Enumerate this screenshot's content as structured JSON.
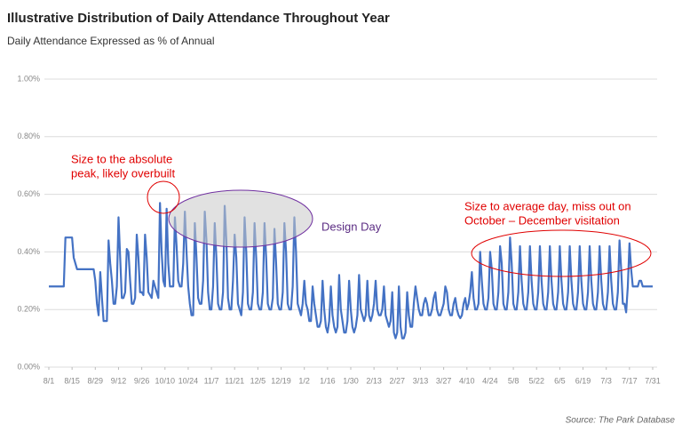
{
  "chart_data": {
    "type": "line",
    "title": "Illustrative Distribution of Daily Attendance Throughout Year",
    "subtitle": "Daily Attendance Expressed as % of Annual",
    "source": "Source: The Park Database",
    "color": "#4472c4",
    "grid": true,
    "ylim": [
      0,
      1.0
    ],
    "yticks": [
      {
        "value": 0,
        "label": "0.00%"
      },
      {
        "value": 0.2,
        "label": "0.20%"
      },
      {
        "value": 0.4,
        "label": "0.40%"
      },
      {
        "value": 0.6,
        "label": "0.60%"
      },
      {
        "value": 0.8,
        "label": "0.80%"
      },
      {
        "value": 1.0,
        "label": "1.00%"
      }
    ],
    "xlim": [
      0,
      364
    ],
    "xticks": [
      {
        "value": 0,
        "label": "8/1"
      },
      {
        "value": 14,
        "label": "8/15"
      },
      {
        "value": 28,
        "label": "8/29"
      },
      {
        "value": 42,
        "label": "9/12"
      },
      {
        "value": 56,
        "label": "9/26"
      },
      {
        "value": 70,
        "label": "10/10"
      },
      {
        "value": 84,
        "label": "10/24"
      },
      {
        "value": 98,
        "label": "11/7"
      },
      {
        "value": 112,
        "label": "11/21"
      },
      {
        "value": 126,
        "label": "12/5"
      },
      {
        "value": 140,
        "label": "12/19"
      },
      {
        "value": 154,
        "label": "1/2"
      },
      {
        "value": 168,
        "label": "1/16"
      },
      {
        "value": 182,
        "label": "1/30"
      },
      {
        "value": 196,
        "label": "2/13"
      },
      {
        "value": 210,
        "label": "2/27"
      },
      {
        "value": 224,
        "label": "3/13"
      },
      {
        "value": 238,
        "label": "3/27"
      },
      {
        "value": 252,
        "label": "4/10"
      },
      {
        "value": 266,
        "label": "4/24"
      },
      {
        "value": 280,
        "label": "5/8"
      },
      {
        "value": 294,
        "label": "5/22"
      },
      {
        "value": 308,
        "label": "6/5"
      },
      {
        "value": 322,
        "label": "6/19"
      },
      {
        "value": 336,
        "label": "7/3"
      },
      {
        "value": 350,
        "label": "7/17"
      },
      {
        "value": 364,
        "label": "7/31"
      }
    ],
    "annotations": [
      {
        "lines": [
          "Size to the absolute",
          "peak, likely overbuilt"
        ]
      },
      {
        "lines": [
          "Design Day"
        ]
      },
      {
        "lines": [
          "Size to average day, miss out on",
          "October – December visitation"
        ]
      }
    ],
    "values": [
      0.28,
      0.28,
      0.28,
      0.28,
      0.28,
      0.28,
      0.28,
      0.28,
      0.28,
      0.28,
      0.45,
      0.45,
      0.45,
      0.45,
      0.45,
      0.38,
      0.36,
      0.34,
      0.34,
      0.34,
      0.34,
      0.34,
      0.34,
      0.34,
      0.34,
      0.34,
      0.34,
      0.34,
      0.3,
      0.22,
      0.18,
      0.33,
      0.24,
      0.16,
      0.16,
      0.16,
      0.44,
      0.36,
      0.3,
      0.22,
      0.22,
      0.28,
      0.52,
      0.38,
      0.24,
      0.24,
      0.26,
      0.41,
      0.4,
      0.3,
      0.22,
      0.22,
      0.24,
      0.46,
      0.38,
      0.26,
      0.26,
      0.25,
      0.46,
      0.38,
      0.26,
      0.25,
      0.24,
      0.3,
      0.28,
      0.26,
      0.24,
      0.57,
      0.4,
      0.3,
      0.28,
      0.55,
      0.36,
      0.28,
      0.28,
      0.28,
      0.52,
      0.42,
      0.3,
      0.28,
      0.28,
      0.36,
      0.54,
      0.4,
      0.28,
      0.22,
      0.18,
      0.18,
      0.5,
      0.38,
      0.24,
      0.22,
      0.22,
      0.3,
      0.54,
      0.44,
      0.26,
      0.2,
      0.2,
      0.28,
      0.5,
      0.38,
      0.22,
      0.2,
      0.2,
      0.26,
      0.56,
      0.44,
      0.24,
      0.2,
      0.2,
      0.3,
      0.46,
      0.38,
      0.22,
      0.2,
      0.18,
      0.26,
      0.52,
      0.4,
      0.22,
      0.2,
      0.2,
      0.26,
      0.5,
      0.38,
      0.22,
      0.2,
      0.2,
      0.26,
      0.5,
      0.38,
      0.22,
      0.2,
      0.2,
      0.24,
      0.48,
      0.36,
      0.22,
      0.2,
      0.2,
      0.26,
      0.5,
      0.4,
      0.22,
      0.2,
      0.2,
      0.28,
      0.52,
      0.4,
      0.22,
      0.2,
      0.18,
      0.22,
      0.3,
      0.22,
      0.2,
      0.16,
      0.16,
      0.28,
      0.22,
      0.18,
      0.14,
      0.14,
      0.16,
      0.3,
      0.2,
      0.14,
      0.12,
      0.16,
      0.28,
      0.18,
      0.14,
      0.12,
      0.14,
      0.32,
      0.2,
      0.16,
      0.12,
      0.12,
      0.16,
      0.3,
      0.2,
      0.14,
      0.12,
      0.14,
      0.18,
      0.32,
      0.2,
      0.18,
      0.16,
      0.18,
      0.3,
      0.18,
      0.16,
      0.18,
      0.22,
      0.3,
      0.2,
      0.18,
      0.18,
      0.2,
      0.28,
      0.18,
      0.16,
      0.14,
      0.16,
      0.26,
      0.12,
      0.1,
      0.12,
      0.28,
      0.14,
      0.1,
      0.1,
      0.12,
      0.26,
      0.18,
      0.14,
      0.14,
      0.22,
      0.28,
      0.24,
      0.2,
      0.18,
      0.18,
      0.22,
      0.24,
      0.22,
      0.18,
      0.18,
      0.2,
      0.24,
      0.26,
      0.2,
      0.18,
      0.18,
      0.2,
      0.22,
      0.28,
      0.26,
      0.2,
      0.18,
      0.18,
      0.22,
      0.24,
      0.2,
      0.18,
      0.17,
      0.18,
      0.22,
      0.24,
      0.2,
      0.22,
      0.26,
      0.33,
      0.24,
      0.2,
      0.2,
      0.22,
      0.4,
      0.3,
      0.22,
      0.2,
      0.2,
      0.24,
      0.4,
      0.34,
      0.22,
      0.2,
      0.2,
      0.26,
      0.42,
      0.36,
      0.22,
      0.2,
      0.2,
      0.26,
      0.45,
      0.36,
      0.22,
      0.2,
      0.2,
      0.26,
      0.42,
      0.3,
      0.22,
      0.2,
      0.2,
      0.26,
      0.42,
      0.3,
      0.22,
      0.2,
      0.2,
      0.26,
      0.42,
      0.3,
      0.22,
      0.2,
      0.2,
      0.26,
      0.42,
      0.3,
      0.22,
      0.2,
      0.2,
      0.26,
      0.42,
      0.3,
      0.22,
      0.2,
      0.2,
      0.26,
      0.42,
      0.3,
      0.22,
      0.2,
      0.2,
      0.26,
      0.42,
      0.3,
      0.22,
      0.2,
      0.2,
      0.26,
      0.42,
      0.3,
      0.22,
      0.2,
      0.2,
      0.26,
      0.42,
      0.3,
      0.22,
      0.2,
      0.2,
      0.26,
      0.42,
      0.3,
      0.22,
      0.2,
      0.2,
      0.26,
      0.44,
      0.34,
      0.22,
      0.22,
      0.19,
      0.28,
      0.43,
      0.34,
      0.28,
      0.28,
      0.28,
      0.28,
      0.3,
      0.3,
      0.28,
      0.28,
      0.28,
      0.28,
      0.28,
      0.28,
      0.28
    ]
  }
}
